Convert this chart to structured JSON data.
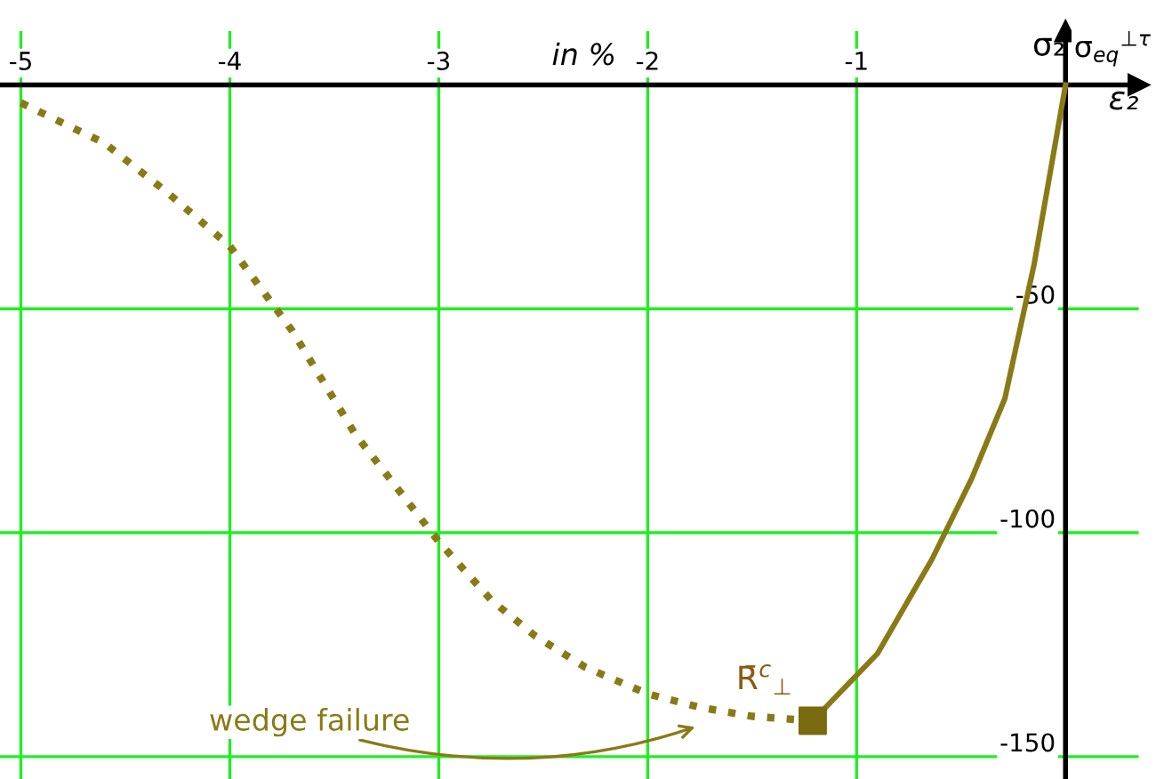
{
  "chart_data": {
    "type": "line",
    "xlabel": "ε₂",
    "ylabel": "σ₂",
    "annotations": [
      "in %",
      "σ$_{eq}$$^{⊥τ}$",
      {
        "text": "R̄$^{c}$$_{⊥}$",
        "x": -1.21,
        "y": -142
      },
      "wedge failure"
    ],
    "series": [
      {
        "color": "#8a7a16",
        "line_style": "dotted",
        "x": [
          -5,
          -4.6,
          -4.3,
          -4,
          -3.7,
          -3.4,
          -3,
          -2.75,
          -2.54,
          -2.3,
          -2,
          -1.75,
          -1.5,
          -1.21
        ],
        "values": [
          -4,
          -13,
          -24,
          -36,
          -55,
          -78,
          -102,
          -115,
          -123,
          -130,
          -136,
          -139,
          -141,
          -142
        ]
      },
      {
        "color": "#8a7a16",
        "line_style": "solid",
        "x": [
          -1.21,
          -0.9,
          -0.64,
          -0.45,
          -0.29,
          -0.15,
          0
        ],
        "values": [
          -142,
          -127,
          -106,
          -88,
          -70,
          -40,
          0
        ]
      },
      {
        "type": "scatter",
        "marker": "square",
        "color": "#7a6a10",
        "x": [
          -1.21
        ],
        "values": [
          -142
        ]
      }
    ],
    "xlim": [
      -5.1,
      0.35
    ],
    "ylim": [
      -155,
      12
    ],
    "xticks": [
      -5,
      -4,
      -3,
      -2,
      -1
    ],
    "yticks": [
      -150,
      -100,
      -50
    ],
    "grid": true
  }
}
